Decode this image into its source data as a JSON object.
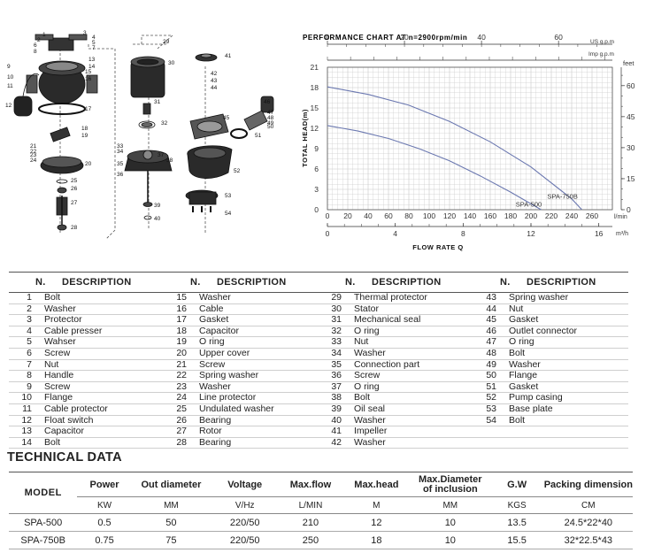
{
  "exploded_view": {
    "callouts": [
      {
        "n": "1"
      },
      {
        "n": "2"
      },
      {
        "n": "3"
      },
      {
        "n": "4"
      },
      {
        "n": "5"
      },
      {
        "n": "6"
      },
      {
        "n": "7"
      },
      {
        "n": "8"
      },
      {
        "n": "9"
      },
      {
        "n": "10"
      },
      {
        "n": "11"
      },
      {
        "n": "12"
      },
      {
        "n": "13"
      },
      {
        "n": "14"
      },
      {
        "n": "15"
      },
      {
        "n": "16"
      },
      {
        "n": "17"
      },
      {
        "n": "18"
      },
      {
        "n": "19"
      },
      {
        "n": "20"
      },
      {
        "n": "21"
      },
      {
        "n": "22"
      },
      {
        "n": "23"
      },
      {
        "n": "24"
      },
      {
        "n": "25"
      },
      {
        "n": "26"
      },
      {
        "n": "27"
      },
      {
        "n": "28"
      },
      {
        "n": "29"
      },
      {
        "n": "30"
      },
      {
        "n": "31"
      },
      {
        "n": "32"
      },
      {
        "n": "33"
      },
      {
        "n": "34"
      },
      {
        "n": "35"
      },
      {
        "n": "36"
      },
      {
        "n": "37"
      },
      {
        "n": "38"
      },
      {
        "n": "39"
      },
      {
        "n": "40"
      },
      {
        "n": "41"
      },
      {
        "n": "42"
      },
      {
        "n": "43"
      },
      {
        "n": "44"
      },
      {
        "n": "45"
      },
      {
        "n": "46"
      },
      {
        "n": "47"
      },
      {
        "n": "48"
      },
      {
        "n": "49"
      },
      {
        "n": "50"
      },
      {
        "n": "51"
      },
      {
        "n": "52"
      },
      {
        "n": "53"
      },
      {
        "n": "54"
      }
    ]
  },
  "chart_data": {
    "type": "line",
    "title": "PERFORMANCE CHART AT n=2900rpm/min",
    "xlabel": "FLOW RATE Q",
    "ylabel": "TOTAL HEAD(m)",
    "x_unit": "l/min",
    "y_unit": "m",
    "xlim": [
      0,
      280
    ],
    "ylim": [
      0,
      21
    ],
    "x_ticks": [
      0,
      20,
      40,
      60,
      80,
      100,
      120,
      140,
      160,
      180,
      200,
      220,
      240,
      260
    ],
    "y_ticks": [
      0,
      3,
      6,
      9,
      12,
      15,
      18,
      21
    ],
    "secondary_axes": {
      "top_us_gpm": {
        "unit": "US g.p.m",
        "ticks": [
          0,
          20,
          40,
          60
        ]
      },
      "top_imp_gpm": {
        "unit": "Imp g.p.m"
      },
      "right_feet": {
        "unit": "feet",
        "ticks": [
          0,
          15,
          30,
          45,
          60
        ]
      },
      "bottom_m3h": {
        "unit": "m³/h",
        "ticks": [
          0,
          4,
          8,
          12,
          16
        ]
      }
    },
    "grid": true,
    "series": [
      {
        "name": "SPA-500",
        "x": [
          0,
          30,
          60,
          90,
          120,
          150,
          180,
          210
        ],
        "y": [
          12.4,
          11.6,
          10.5,
          9.0,
          7.2,
          5.0,
          2.6,
          0
        ]
      },
      {
        "name": "SPA-750B",
        "x": [
          0,
          40,
          80,
          120,
          160,
          200,
          240,
          250
        ],
        "y": [
          18.1,
          17.0,
          15.4,
          13.0,
          10.0,
          6.3,
          1.6,
          0
        ]
      }
    ]
  },
  "parts_table": {
    "header": {
      "n": "N.",
      "description": "DESCRIPTION"
    },
    "columns": [
      [
        {
          "n": "1",
          "d": "Bolt"
        },
        {
          "n": "2",
          "d": "Washer"
        },
        {
          "n": "3",
          "d": "Protector"
        },
        {
          "n": "4",
          "d": "Cable presser"
        },
        {
          "n": "5",
          "d": "Wahser"
        },
        {
          "n": "6",
          "d": "Screw"
        },
        {
          "n": "7",
          "d": "Nut"
        },
        {
          "n": "8",
          "d": "Handle"
        },
        {
          "n": "9",
          "d": "Screw"
        },
        {
          "n": "10",
          "d": "Flange"
        },
        {
          "n": "11",
          "d": "Cable protector"
        },
        {
          "n": "12",
          "d": "Float switch"
        },
        {
          "n": "13",
          "d": "Capacitor"
        },
        {
          "n": "14",
          "d": "Bolt"
        }
      ],
      [
        {
          "n": "15",
          "d": "Washer"
        },
        {
          "n": "16",
          "d": "Cable"
        },
        {
          "n": "17",
          "d": "Gasket"
        },
        {
          "n": "18",
          "d": "Capacitor"
        },
        {
          "n": "19",
          "d": "O ring"
        },
        {
          "n": "20",
          "d": "Upper cover"
        },
        {
          "n": "21",
          "d": "Screw"
        },
        {
          "n": "22",
          "d": "Spring washer"
        },
        {
          "n": "23",
          "d": "Washer"
        },
        {
          "n": "24",
          "d": "Line protector"
        },
        {
          "n": "25",
          "d": "Undulated washer"
        },
        {
          "n": "26",
          "d": "Bearing"
        },
        {
          "n": "27",
          "d": "Rotor"
        },
        {
          "n": "28",
          "d": "Bearing"
        }
      ],
      [
        {
          "n": "29",
          "d": "Thermal protector"
        },
        {
          "n": "30",
          "d": "Stator"
        },
        {
          "n": "31",
          "d": "Mechanical seal"
        },
        {
          "n": "32",
          "d": "O ring"
        },
        {
          "n": "33",
          "d": "Nut"
        },
        {
          "n": "34",
          "d": "Washer"
        },
        {
          "n": "35",
          "d": "Connection part"
        },
        {
          "n": "36",
          "d": "Screw"
        },
        {
          "n": "37",
          "d": "O ring"
        },
        {
          "n": "38",
          "d": "Bolt"
        },
        {
          "n": "39",
          "d": "Oil seal"
        },
        {
          "n": "40",
          "d": "Washer"
        },
        {
          "n": "41",
          "d": "Impeller"
        },
        {
          "n": "42",
          "d": "Washer"
        }
      ],
      [
        {
          "n": "43",
          "d": "Spring washer"
        },
        {
          "n": "44",
          "d": "Nut"
        },
        {
          "n": "45",
          "d": "Gasket"
        },
        {
          "n": "46",
          "d": "Outlet connector"
        },
        {
          "n": "47",
          "d": "O ring"
        },
        {
          "n": "48",
          "d": "Bolt"
        },
        {
          "n": "49",
          "d": "Washer"
        },
        {
          "n": "50",
          "d": "Flange"
        },
        {
          "n": "51",
          "d": "Gasket"
        },
        {
          "n": "52",
          "d": "Pump casing"
        },
        {
          "n": "53",
          "d": "Base plate"
        },
        {
          "n": "54",
          "d": "Bolt"
        },
        {
          "n": "",
          "d": ""
        },
        {
          "n": "",
          "d": ""
        }
      ]
    ]
  },
  "technical_data": {
    "title": "TECHNICAL DATA",
    "headers": {
      "model": "MODEL",
      "power": "Power",
      "out_diameter": "Out diameter",
      "voltage": "Voltage",
      "max_flow": "Max.flow",
      "max_head": "Max.head",
      "max_diameter_line1": "Max.Diameter",
      "max_diameter_line2": "of inclusion",
      "gw": "G.W",
      "packing": "Packing dimension"
    },
    "units": {
      "power": "KW",
      "out_diameter": "MM",
      "voltage": "V/Hz",
      "max_flow": "L/MIN",
      "max_head": "M",
      "max_diameter": "MM",
      "gw": "KGS",
      "packing": "CM"
    },
    "rows": [
      {
        "model": "SPA-500",
        "power": "0.5",
        "out_diameter": "50",
        "voltage": "220/50",
        "max_flow": "210",
        "max_head": "12",
        "max_diameter": "10",
        "gw": "13.5",
        "packing": "24.5*22*40"
      },
      {
        "model": "SPA-750B",
        "power": "0.75",
        "out_diameter": "75",
        "voltage": "220/50",
        "max_flow": "250",
        "max_head": "18",
        "max_diameter": "10",
        "gw": "15.5",
        "packing": "32*22.5*43"
      }
    ]
  }
}
